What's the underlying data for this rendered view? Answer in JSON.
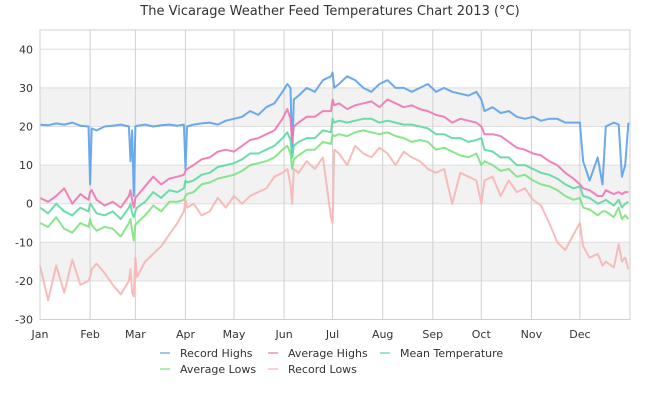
{
  "chart_data": {
    "type": "line",
    "title": "The Vicarage Weather Feed Temperatures Chart 2013 (°C)",
    "xlabel": "",
    "ylabel": "",
    "ylim": [
      -30,
      40
    ],
    "yticks": [
      "40",
      "30",
      "20",
      "10",
      "0",
      "-10",
      "-20",
      "-30"
    ],
    "ytick_values": [
      40,
      30,
      20,
      10,
      0,
      -10,
      -20,
      -30
    ],
    "xlim_days": [
      0,
      365
    ],
    "xticks": [
      {
        "label": "Jan",
        "day": 0
      },
      {
        "label": "Feb",
        "day": 31
      },
      {
        "label": "Mar",
        "day": 59
      },
      {
        "label": "Apr",
        "day": 90
      },
      {
        "label": "May",
        "day": 120
      },
      {
        "label": "Jun",
        "day": 151
      },
      {
        "label": "Jul",
        "day": 181
      },
      {
        "label": "Aug",
        "day": 212
      },
      {
        "label": "Sep",
        "day": 243
      },
      {
        "label": "Oct",
        "day": 273
      },
      {
        "label": "Nov",
        "day": 304
      },
      {
        "label": "Dec",
        "day": 334
      }
    ],
    "grid": true,
    "shaded_bands": [
      [
        20,
        30
      ],
      [
        0,
        10
      ],
      [
        -20,
        -10
      ]
    ],
    "legend_position": "bottom",
    "x_days": [
      0,
      5,
      10,
      15,
      20,
      25,
      30,
      31,
      32,
      35,
      40,
      45,
      50,
      55,
      56,
      57,
      58,
      59,
      60,
      65,
      70,
      75,
      80,
      85,
      89,
      90,
      91,
      95,
      100,
      105,
      110,
      115,
      120,
      125,
      130,
      135,
      140,
      145,
      150,
      153,
      155,
      156,
      157,
      160,
      165,
      170,
      175,
      180,
      181,
      182,
      185,
      190,
      195,
      200,
      205,
      210,
      215,
      220,
      225,
      230,
      235,
      240,
      245,
      250,
      255,
      260,
      265,
      270,
      273,
      275,
      280,
      285,
      290,
      295,
      300,
      305,
      310,
      315,
      320,
      325,
      330,
      334,
      336,
      340,
      345,
      348,
      350,
      355,
      358,
      360,
      362,
      364
    ],
    "series": [
      {
        "name": "Record Highs",
        "color": "#5ca1ec",
        "values": [
          20.5,
          20.3,
          20.8,
          20.5,
          21.0,
          20.2,
          20.0,
          5.0,
          19.5,
          19.0,
          20.0,
          20.2,
          20.5,
          20.0,
          11.0,
          19.0,
          2.0,
          20.0,
          20.2,
          20.5,
          20.0,
          20.3,
          20.5,
          20.2,
          20.5,
          9.0,
          20.0,
          20.5,
          20.8,
          21.0,
          20.5,
          21.5,
          22.0,
          22.5,
          24.0,
          23.0,
          25.0,
          26.0,
          29.0,
          31.0,
          30.0,
          12.0,
          27.0,
          28.0,
          30.0,
          29.0,
          32.0,
          33.0,
          34.0,
          30.0,
          31.0,
          33.0,
          32.0,
          30.0,
          29.0,
          31.0,
          32.0,
          30.0,
          30.0,
          29.0,
          30.0,
          31.0,
          29.0,
          30.0,
          29.0,
          28.5,
          28.0,
          29.0,
          27.0,
          24.0,
          25.0,
          23.5,
          24.0,
          22.5,
          22.0,
          22.5,
          21.5,
          22.0,
          22.0,
          21.0,
          21.0,
          21.0,
          11.0,
          6.0,
          12.0,
          5.0,
          20.0,
          21.0,
          20.5,
          7.0,
          10.0,
          21.0
        ]
      },
      {
        "name": "Average Highs",
        "color": "#ee75b2",
        "values": [
          1.5,
          0.5,
          2.0,
          4.0,
          0.0,
          2.5,
          1.0,
          3.0,
          3.5,
          1.0,
          -0.5,
          0.5,
          -1.0,
          2.0,
          3.5,
          1.0,
          -1.0,
          1.5,
          2.0,
          4.5,
          7.0,
          5.0,
          6.5,
          7.0,
          7.5,
          8.5,
          9.0,
          10.0,
          11.5,
          12.0,
          13.5,
          14.0,
          13.5,
          15.0,
          16.5,
          17.0,
          18.0,
          19.0,
          22.0,
          24.5,
          22.0,
          16.0,
          20.0,
          21.0,
          22.5,
          22.5,
          24.0,
          24.0,
          27.0,
          25.5,
          26.0,
          24.5,
          25.5,
          26.0,
          26.5,
          25.0,
          27.0,
          26.0,
          25.0,
          25.5,
          24.5,
          24.0,
          23.0,
          22.5,
          21.0,
          22.0,
          21.5,
          21.0,
          20.0,
          18.0,
          18.0,
          17.5,
          16.0,
          14.5,
          14.0,
          13.0,
          12.5,
          11.0,
          10.0,
          8.0,
          6.5,
          5.0,
          4.0,
          3.5,
          2.0,
          2.0,
          3.5,
          2.5,
          3.0,
          2.5,
          3.0,
          3.0
        ]
      },
      {
        "name": "Mean Temperature",
        "color": "#5dd8a2",
        "values": [
          -1.0,
          -2.5,
          0.0,
          -2.0,
          -3.0,
          -1.0,
          -2.0,
          0.0,
          -0.5,
          -2.5,
          -3.0,
          -2.0,
          -4.0,
          -1.0,
          0.0,
          -2.5,
          -3.5,
          -2.0,
          -1.0,
          0.5,
          3.0,
          1.5,
          3.5,
          3.0,
          4.0,
          6.0,
          5.5,
          6.0,
          7.5,
          8.0,
          9.5,
          10.0,
          10.5,
          11.5,
          13.0,
          13.0,
          14.0,
          15.0,
          17.0,
          18.5,
          16.5,
          12.0,
          15.0,
          16.0,
          17.0,
          17.0,
          19.0,
          18.5,
          22.0,
          21.0,
          21.5,
          21.0,
          21.5,
          22.0,
          22.0,
          21.0,
          21.5,
          21.0,
          20.5,
          20.5,
          20.0,
          19.5,
          18.0,
          18.0,
          17.0,
          17.0,
          16.0,
          16.5,
          17.0,
          14.0,
          13.5,
          12.0,
          12.0,
          10.0,
          10.0,
          9.0,
          8.0,
          7.5,
          6.5,
          5.0,
          4.0,
          4.5,
          2.0,
          1.5,
          0.0,
          0.5,
          1.0,
          -0.5,
          1.0,
          -1.0,
          0.0,
          0.5
        ]
      },
      {
        "name": "Average Lows",
        "color": "#7de27f",
        "values": [
          -5.0,
          -6.0,
          -3.5,
          -6.5,
          -7.5,
          -5.0,
          -6.0,
          -4.0,
          -5.5,
          -7.0,
          -6.0,
          -6.5,
          -8.5,
          -5.0,
          -4.0,
          -7.0,
          -9.5,
          -5.5,
          -5.0,
          -3.0,
          -0.5,
          -2.0,
          0.5,
          0.5,
          1.0,
          2.0,
          2.5,
          3.0,
          5.0,
          5.5,
          6.5,
          7.0,
          7.5,
          8.5,
          10.0,
          10.5,
          11.0,
          12.0,
          14.0,
          15.0,
          13.0,
          9.0,
          11.5,
          12.5,
          14.0,
          14.0,
          16.0,
          15.5,
          18.0,
          17.5,
          18.0,
          17.5,
          18.5,
          19.0,
          18.5,
          18.0,
          18.5,
          17.5,
          17.0,
          16.0,
          16.5,
          16.0,
          14.0,
          14.5,
          13.5,
          12.5,
          12.0,
          13.0,
          10.0,
          11.0,
          10.0,
          8.5,
          9.0,
          7.0,
          7.5,
          6.0,
          5.0,
          4.5,
          3.5,
          2.0,
          1.0,
          1.5,
          -1.0,
          -1.5,
          -3.0,
          -2.0,
          -2.0,
          -3.5,
          -1.0,
          -4.0,
          -3.0,
          -4.0
        ]
      },
      {
        "name": "Record Lows",
        "color": "#f5b6b5",
        "values": [
          -16.0,
          -25.0,
          -16.0,
          -23.0,
          -14.5,
          -21.0,
          -20.0,
          -19.0,
          -17.0,
          -15.5,
          -18.0,
          -21.0,
          -23.5,
          -20.0,
          -17.0,
          -23.0,
          -24.0,
          -14.0,
          -19.0,
          -15.0,
          -13.0,
          -11.0,
          -8.0,
          -5.0,
          -2.0,
          1.0,
          -1.0,
          0.0,
          -3.0,
          -2.0,
          1.5,
          -1.0,
          2.0,
          0.0,
          2.0,
          3.0,
          4.0,
          7.0,
          8.0,
          9.0,
          5.0,
          0.0,
          9.0,
          8.0,
          11.0,
          9.0,
          12.0,
          -3.5,
          -5.0,
          14.0,
          13.0,
          10.0,
          15.0,
          13.0,
          12.0,
          14.5,
          13.0,
          10.0,
          13.5,
          12.0,
          11.0,
          9.0,
          8.0,
          9.0,
          0.0,
          8.0,
          7.0,
          6.0,
          0.0,
          6.0,
          7.0,
          2.0,
          6.0,
          3.0,
          4.0,
          1.0,
          -0.5,
          -5.0,
          -10.0,
          -12.0,
          -8.0,
          -5.0,
          -11.0,
          -14.0,
          -13.0,
          -16.0,
          -15.0,
          -16.5,
          -10.5,
          -15.0,
          -14.0,
          -17.0
        ]
      }
    ]
  }
}
